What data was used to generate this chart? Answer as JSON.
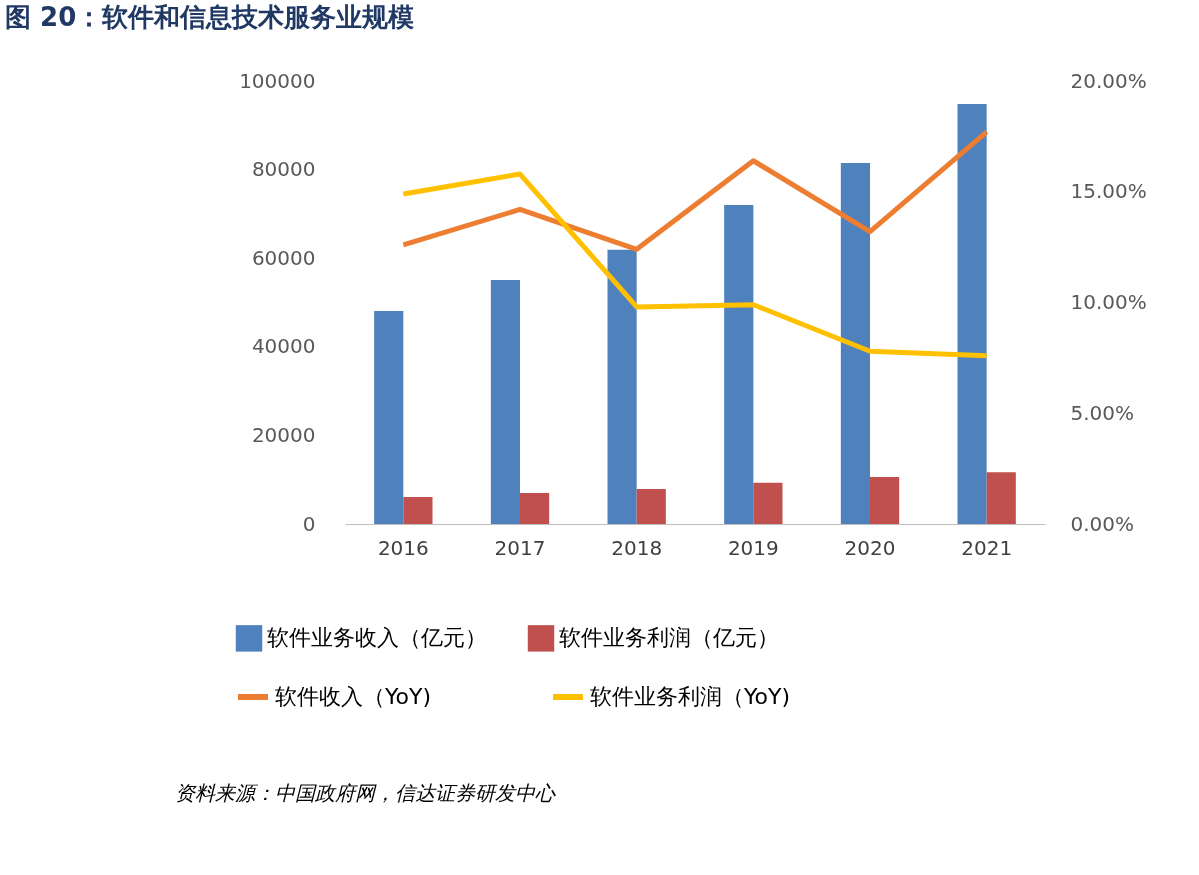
{
  "chart_data": {
    "type": "bar",
    "title": "图 20：软件和信息技术服务业规模",
    "categories": [
      "2016",
      "2017",
      "2018",
      "2019",
      "2020",
      "2021"
    ],
    "series": [
      {
        "name": "软件业务收入（亿元）",
        "color": "#4f81bd",
        "values": [
          48100,
          55100,
          61900,
          72000,
          81500,
          94800
        ]
      },
      {
        "name": "软件业务利润（亿元）",
        "color": "#c0504d",
        "values": [
          6100,
          7000,
          7900,
          9300,
          10600,
          11700
        ]
      },
      {
        "name": "软件收入（YoY)",
        "type": "line",
        "axis": "y2",
        "color": "#ed7d31",
        "values": [
          12.6,
          14.2,
          12.4,
          16.4,
          13.2,
          17.7
        ]
      },
      {
        "name": "软件业务利润（YoY)",
        "type": "line",
        "axis": "y2",
        "color": "#ffc000",
        "values": [
          14.9,
          15.8,
          9.8,
          9.9,
          7.8,
          7.6
        ]
      }
    ],
    "ylim": [
      0,
      100000
    ],
    "yticks": [
      0,
      20000,
      40000,
      60000,
      80000,
      100000
    ],
    "y2lim": [
      0,
      20
    ],
    "y2ticks": [
      {
        "value": 0,
        "label": "0.00%"
      },
      {
        "value": 5,
        "label": "5.00%"
      },
      {
        "value": 10,
        "label": "10.00%"
      },
      {
        "value": 15,
        "label": "15.00%"
      },
      {
        "value": 20,
        "label": "20.00%"
      }
    ],
    "grid": false,
    "legend": "bottom",
    "annotations": [
      "资料来源：中国政府网，信达证券研发中心"
    ]
  }
}
